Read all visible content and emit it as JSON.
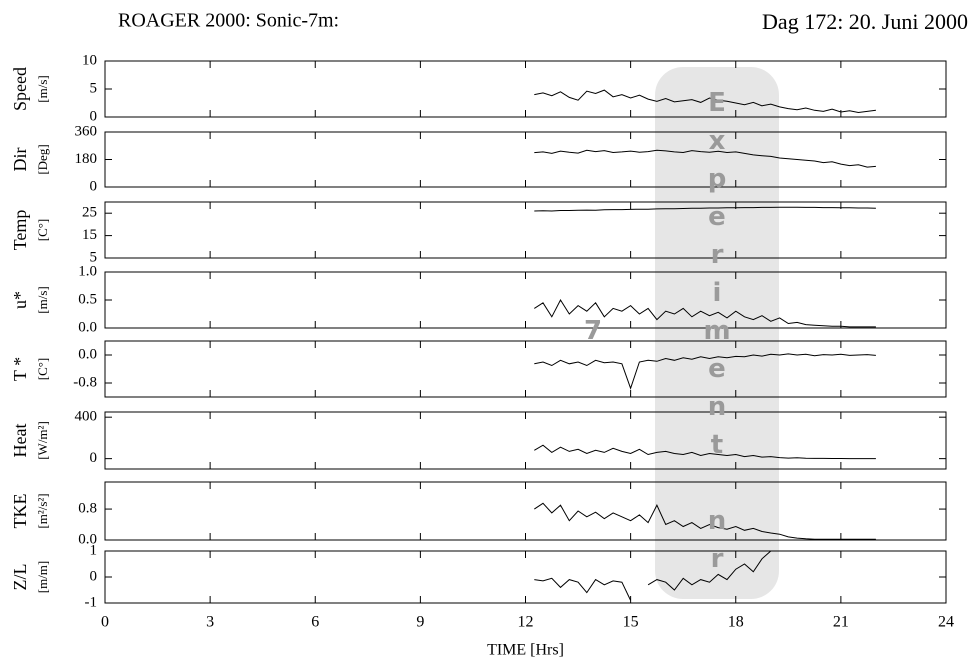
{
  "title_left": "ROAGER 2000: Sonic-7m:",
  "title_right": "Dag 172: 20. Juni 2000",
  "watermark": "Experiment nr 7",
  "chart_data": [
    {
      "type": "line",
      "ylabel": "Speed",
      "yunit": "[m/s]",
      "color": "#000000",
      "xlim": [
        0,
        24
      ],
      "ylim": [
        0,
        10
      ],
      "yticks": [
        0,
        5,
        10
      ],
      "x": [
        12.25,
        12.5,
        12.75,
        13,
        13.25,
        13.5,
        13.75,
        14,
        14.25,
        14.5,
        14.75,
        15,
        15.25,
        15.5,
        15.75,
        16,
        16.25,
        16.5,
        16.75,
        17,
        17.25,
        17.5,
        17.75,
        18,
        18.25,
        18.5,
        18.75,
        19,
        19.25,
        19.5,
        19.75,
        20,
        20.25,
        20.5,
        20.75,
        21,
        21.25,
        21.5,
        21.75,
        22
      ],
      "values": [
        4.0,
        4.3,
        3.8,
        4.5,
        3.5,
        3.0,
        4.6,
        4.2,
        4.8,
        3.6,
        4.0,
        3.4,
        3.9,
        3.2,
        2.8,
        3.3,
        2.7,
        2.9,
        3.1,
        2.6,
        3.4,
        3.0,
        2.8,
        2.5,
        2.2,
        2.6,
        2.0,
        2.3,
        1.8,
        1.5,
        1.3,
        1.6,
        1.2,
        1.0,
        1.4,
        0.9,
        1.1,
        0.8,
        1.0,
        1.2
      ]
    },
    {
      "type": "line",
      "ylabel": "Dir",
      "yunit": "[Deg]",
      "color": "#000000",
      "xlim": [
        0,
        24
      ],
      "ylim": [
        0,
        360
      ],
      "yticks": [
        0,
        180,
        360
      ],
      "x": [
        12.25,
        12.5,
        12.75,
        13,
        13.25,
        13.5,
        13.75,
        14,
        14.25,
        14.5,
        14.75,
        15,
        15.25,
        15.5,
        15.75,
        16,
        16.25,
        16.5,
        16.75,
        17,
        17.25,
        17.5,
        17.75,
        18,
        18.25,
        18.5,
        18.75,
        19,
        19.25,
        19.5,
        19.75,
        20,
        20.25,
        20.5,
        20.75,
        21,
        21.25,
        21.5,
        21.75,
        22
      ],
      "values": [
        225,
        230,
        220,
        235,
        228,
        222,
        240,
        232,
        238,
        226,
        230,
        235,
        228,
        232,
        240,
        236,
        230,
        226,
        238,
        232,
        228,
        234,
        226,
        230,
        220,
        210,
        205,
        200,
        190,
        185,
        180,
        175,
        170,
        160,
        165,
        150,
        140,
        145,
        130,
        135
      ]
    },
    {
      "type": "line",
      "ylabel": "Temp",
      "yunit": "[C°]",
      "color": "#000000",
      "xlim": [
        0,
        24
      ],
      "ylim": [
        5,
        30
      ],
      "yticks": [
        5,
        15,
        25
      ],
      "x": [
        12.25,
        12.5,
        12.75,
        13,
        13.25,
        13.5,
        13.75,
        14,
        14.25,
        14.5,
        14.75,
        15,
        15.25,
        15.5,
        15.75,
        16,
        16.25,
        16.5,
        16.75,
        17,
        17.25,
        17.5,
        17.75,
        18,
        18.25,
        18.5,
        18.75,
        19,
        19.25,
        19.5,
        19.75,
        20,
        20.25,
        20.5,
        20.75,
        21,
        21.25,
        21.5,
        21.75,
        22
      ],
      "values": [
        26,
        26.1,
        26,
        26.2,
        26.2,
        26.3,
        26.4,
        26.3,
        26.5,
        26.6,
        26.6,
        26.7,
        26.8,
        26.8,
        26.9,
        27,
        27,
        27.1,
        27.2,
        27.2,
        27.3,
        27.3,
        27.4,
        27.4,
        27.5,
        27.5,
        27.6,
        27.6,
        27.7,
        27.7,
        27.7,
        27.6,
        27.6,
        27.5,
        27.5,
        27.4,
        27.4,
        27.3,
        27.3,
        27.2
      ]
    },
    {
      "type": "line",
      "ylabel": "u*",
      "yunit": "[m/s]",
      "color": "#000000",
      "xlim": [
        0,
        24
      ],
      "ylim": [
        0,
        1
      ],
      "yticks": [
        {
          "value": 0,
          "label": "0.0"
        },
        {
          "value": 0.5,
          "label": "0.5"
        },
        {
          "value": 1,
          "label": "1.0"
        }
      ],
      "x": [
        12.25,
        12.5,
        12.75,
        13,
        13.25,
        13.5,
        13.75,
        14,
        14.25,
        14.5,
        14.75,
        15,
        15.25,
        15.5,
        15.75,
        16,
        16.25,
        16.5,
        16.75,
        17,
        17.25,
        17.5,
        17.75,
        18,
        18.25,
        18.5,
        18.75,
        19,
        19.25,
        19.5,
        19.75,
        20,
        20.25,
        20.5,
        20.75,
        21,
        21.25,
        21.5,
        21.75,
        22
      ],
      "values": [
        0.35,
        0.45,
        0.2,
        0.5,
        0.25,
        0.4,
        0.3,
        0.45,
        0.2,
        0.35,
        0.3,
        0.4,
        0.25,
        0.35,
        0.15,
        0.3,
        0.25,
        0.35,
        0.2,
        0.3,
        0.22,
        0.28,
        0.18,
        0.3,
        0.2,
        0.15,
        0.22,
        0.12,
        0.18,
        0.08,
        0.1,
        0.06,
        0.05,
        0.04,
        0.03,
        0.03,
        0.02,
        0.02,
        0.02,
        0.02
      ]
    },
    {
      "type": "line",
      "ylabel": "T *",
      "yunit": "[C°]",
      "color": "#000000",
      "xlim": [
        0,
        24
      ],
      "ylim": [
        -1.2,
        0.4
      ],
      "yticks": [
        {
          "value": -0.8,
          "label": "-0.8"
        },
        {
          "value": 0,
          "label": "0.0"
        }
      ],
      "x": [
        12.25,
        12.5,
        12.75,
        13,
        13.25,
        13.5,
        13.75,
        14,
        14.25,
        14.5,
        14.75,
        15,
        15.25,
        15.5,
        15.75,
        16,
        16.25,
        16.5,
        16.75,
        17,
        17.25,
        17.5,
        17.75,
        18,
        18.25,
        18.5,
        18.75,
        19,
        19.25,
        19.5,
        19.75,
        20,
        20.25,
        20.5,
        20.75,
        21,
        21.25,
        21.5,
        21.75,
        22
      ],
      "values": [
        -0.25,
        -0.2,
        -0.3,
        -0.15,
        -0.25,
        -0.2,
        -0.3,
        -0.15,
        -0.22,
        -0.2,
        -0.25,
        -0.95,
        -0.2,
        -0.15,
        -0.18,
        -0.1,
        -0.15,
        -0.08,
        -0.12,
        -0.05,
        -0.1,
        -0.05,
        -0.08,
        -0.04,
        -0.05,
        0,
        -0.03,
        0.02,
        0,
        0.03,
        0,
        0.02,
        -0.02,
        0.01,
        0,
        0.02,
        -0.01,
        0,
        0.01,
        -0.01
      ]
    },
    {
      "type": "line",
      "ylabel": "Heat",
      "yunit": "[W/m²]",
      "color": "#000000",
      "xlim": [
        0,
        24
      ],
      "ylim": [
        -100,
        450
      ],
      "yticks": [
        0,
        400
      ],
      "x": [
        12.25,
        12.5,
        12.75,
        13,
        13.25,
        13.5,
        13.75,
        14,
        14.25,
        14.5,
        14.75,
        15,
        15.25,
        15.5,
        15.75,
        16,
        16.25,
        16.5,
        16.75,
        17,
        17.25,
        17.5,
        17.75,
        18,
        18.25,
        18.5,
        18.75,
        19,
        19.25,
        19.5,
        19.75,
        20,
        20.25,
        20.5,
        20.75,
        21,
        21.25,
        21.5,
        21.75,
        22
      ],
      "values": [
        80,
        130,
        60,
        110,
        70,
        90,
        50,
        80,
        60,
        100,
        70,
        50,
        90,
        40,
        60,
        70,
        50,
        40,
        60,
        30,
        50,
        40,
        30,
        40,
        20,
        30,
        15,
        20,
        10,
        5,
        8,
        3,
        2,
        2,
        1,
        1,
        0,
        0,
        0,
        0
      ]
    },
    {
      "type": "line",
      "ylabel": "TKE",
      "yunit": "[m²/s²]",
      "color": "#000000",
      "xlim": [
        0,
        24
      ],
      "ylim": [
        0,
        1.5
      ],
      "yticks": [
        {
          "value": 0,
          "label": "0.0"
        },
        {
          "value": 0.8,
          "label": "0.8"
        }
      ],
      "x": [
        12.25,
        12.5,
        12.75,
        13,
        13.25,
        13.5,
        13.75,
        14,
        14.25,
        14.5,
        14.75,
        15,
        15.25,
        15.5,
        15.75,
        16,
        16.25,
        16.5,
        16.75,
        17,
        17.25,
        17.5,
        17.75,
        18,
        18.25,
        18.5,
        18.75,
        19,
        19.25,
        19.5,
        19.75,
        20,
        20.25,
        20.5,
        20.75,
        21,
        21.25,
        21.5,
        21.75,
        22
      ],
      "values": [
        0.8,
        0.95,
        0.7,
        0.9,
        0.5,
        0.75,
        0.6,
        0.72,
        0.55,
        0.7,
        0.6,
        0.5,
        0.65,
        0.45,
        0.9,
        0.4,
        0.5,
        0.35,
        0.45,
        0.3,
        0.4,
        0.32,
        0.28,
        0.35,
        0.25,
        0.3,
        0.22,
        0.18,
        0.15,
        0.08,
        0.05,
        0.03,
        0.02,
        0.02,
        0.02,
        0.02,
        0.02,
        0.02,
        0.02,
        0.02
      ]
    },
    {
      "type": "line",
      "ylabel": "Z/L",
      "yunit": "[m/m]",
      "color": "#000000",
      "xlim": [
        0,
        24
      ],
      "ylim": [
        -1,
        1
      ],
      "yticks": [
        -1,
        0,
        1
      ],
      "xticks": [
        0,
        3,
        6,
        9,
        12,
        15,
        18,
        21,
        24
      ],
      "xlabel": "TIME [Hrs]",
      "x": [
        12.25,
        12.5,
        12.75,
        13,
        13.25,
        13.5,
        13.75,
        14,
        14.25,
        14.5,
        14.75,
        15,
        15.25,
        15.5,
        15.75,
        16,
        16.25,
        16.5,
        16.75,
        17,
        17.25,
        17.5,
        17.75,
        18,
        18.25,
        18.5,
        18.75,
        19,
        19.25,
        19.5,
        19.75,
        20,
        20.25,
        20.5,
        20.75,
        21,
        21.25,
        21.5,
        21.75,
        22
      ],
      "values": [
        -0.1,
        -0.15,
        -0.05,
        -0.4,
        -0.1,
        -0.2,
        -0.6,
        -0.1,
        -0.3,
        -0.15,
        -0.2,
        -0.9,
        null,
        -0.3,
        -0.1,
        -0.2,
        -0.5,
        -0.05,
        -0.3,
        -0.1,
        -0.2,
        0.1,
        -0.1,
        0.3,
        0.5,
        0.2,
        0.7,
        1.0,
        null,
        null,
        null,
        null,
        null,
        null,
        null,
        null,
        null,
        null,
        null,
        null
      ]
    }
  ]
}
